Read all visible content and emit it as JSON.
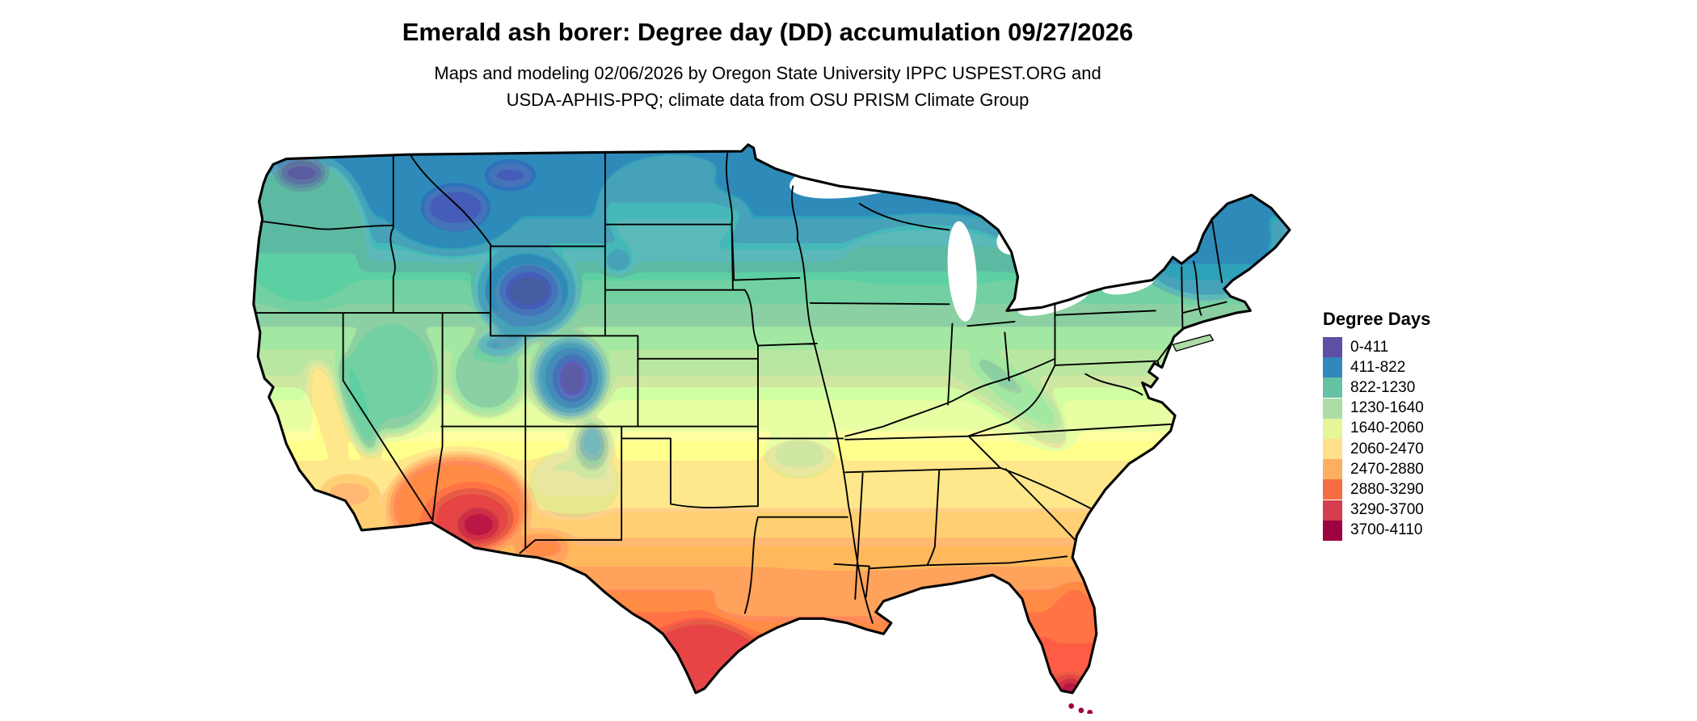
{
  "page": {
    "background": "#ffffff"
  },
  "header": {
    "title": "Emerald ash borer: Degree day (DD) accumulation 09/27/2026",
    "subtitle_line1": "Maps and modeling 02/06/2026 by Oregon State University IPPC USPEST.ORG and",
    "subtitle_line2": "USDA-APHIS-PPQ; climate data from OSU PRISM Climate Group"
  },
  "legend": {
    "title": "Degree Days",
    "items": [
      {
        "label": "0-411",
        "color": "#5e4fa2"
      },
      {
        "label": "411-822",
        "color": "#3288bd"
      },
      {
        "label": "822-1230",
        "color": "#66c2a5"
      },
      {
        "label": "1230-1640",
        "color": "#abdda4"
      },
      {
        "label": "1640-2060",
        "color": "#e6f598"
      },
      {
        "label": "2060-2470",
        "color": "#fee08b"
      },
      {
        "label": "2470-2880",
        "color": "#fdae61"
      },
      {
        "label": "2880-3290",
        "color": "#f46d43"
      },
      {
        "label": "3290-3700",
        "color": "#d53e4f"
      },
      {
        "label": "3700-4110",
        "color": "#9e0142"
      }
    ]
  },
  "palette": {
    "p0": "#5e4fa2",
    "p1": "#3288bd",
    "p2": "#66c2a5",
    "p3": "#abdda4",
    "p4": "#e6f598",
    "p5": "#fee08b",
    "p6": "#fdae61",
    "p7": "#f46d43",
    "p8": "#d53e4f",
    "p9": "#9e0142"
  },
  "map": {
    "region": "Contiguous United States"
  },
  "chart_data": {
    "type": "choropleth_map",
    "title": "Emerald ash borer: Degree day (DD) accumulation 09/27/2026",
    "region": "Contiguous United States",
    "variable": "Degree Days",
    "legend_title": "Degree Days",
    "bins": [
      "0-411",
      "411-822",
      "822-1230",
      "1230-1640",
      "1640-2060",
      "2060-2470",
      "2470-2880",
      "2880-3290",
      "3290-3700",
      "3700-4110"
    ],
    "palette": [
      "#5e4fa2",
      "#3288bd",
      "#66c2a5",
      "#abdda4",
      "#e6f598",
      "#fee08b",
      "#fdae61",
      "#f46d43",
      "#d53e4f",
      "#9e0142"
    ],
    "pattern_summary": "Lowest accumulation (purple/blue) in northern states, Cascades and Rockies; mid values (teal/green/yellow) across the Midwest and Northeast; highest values (orange/red/maroon) across the southern tier, peaking in southern Arizona, south Texas and south Florida."
  }
}
